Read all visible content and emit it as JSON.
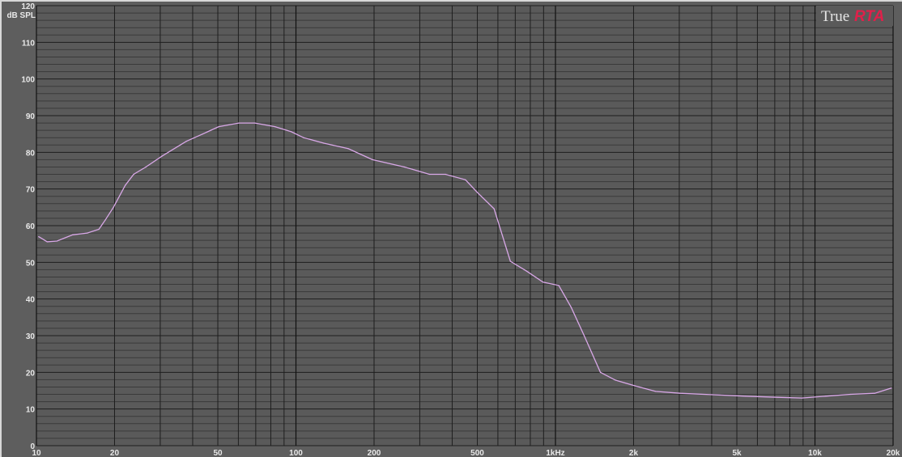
{
  "logo": {
    "part1": "True",
    "part2": "RTA",
    "accent_color": "#e0204a"
  },
  "chart_data": {
    "type": "line",
    "title": "",
    "xlabel": "",
    "ylabel": "dB SPL",
    "xscale": "log",
    "xlim": [
      10,
      20000
    ],
    "ylim": [
      0,
      120
    ],
    "grid": true,
    "x_ticks": [
      {
        "value": 10,
        "label": "10"
      },
      {
        "value": 20,
        "label": "20"
      },
      {
        "value": 50,
        "label": "50"
      },
      {
        "value": 100,
        "label": "100"
      },
      {
        "value": 200,
        "label": "200"
      },
      {
        "value": 500,
        "label": "500"
      },
      {
        "value": 1000,
        "label": "1kHz"
      },
      {
        "value": 2000,
        "label": "2k"
      },
      {
        "value": 5000,
        "label": "5k"
      },
      {
        "value": 10000,
        "label": "10k"
      },
      {
        "value": 20000,
        "label": "20k"
      }
    ],
    "y_ticks": [
      "0",
      "10",
      "20",
      "30",
      "40",
      "50",
      "60",
      "70",
      "80",
      "90",
      "100",
      "110",
      "120"
    ],
    "colors": {
      "background": "#5a5a5a",
      "grid_major": "#1e1e1e",
      "grid_minor": "#3a3a3a",
      "line": "#d9a8e8"
    },
    "series": [
      {
        "color": "#d9a8e8",
        "x": [
          10.2,
          11,
          12,
          13.8,
          15.7,
          17.4,
          18.4,
          19.8,
          22,
          23.7,
          26.4,
          30.5,
          37.8,
          43.7,
          50.4,
          60.2,
          69.5,
          83,
          96,
          107,
          128,
          159,
          197,
          262,
          327,
          377,
          450,
          501,
          580,
          670,
          774,
          895,
          1030,
          1150,
          1290,
          1490,
          1700,
          2030,
          2430,
          3020,
          4040,
          5400,
          7200,
          8900,
          11000,
          13700,
          17000,
          19700
        ],
        "y": [
          57,
          55.6,
          55.8,
          57.5,
          58,
          59,
          61.5,
          65,
          71,
          74,
          76,
          79,
          83,
          85,
          87,
          88,
          88,
          87,
          85.6,
          84,
          82.5,
          81,
          78,
          76,
          74,
          74,
          72.5,
          69,
          64.6,
          50.3,
          47.6,
          44.6,
          43.7,
          37.7,
          30,
          20,
          17.9,
          16.3,
          14.8,
          14.3,
          13.9,
          13.5,
          13.2,
          13,
          13.5,
          14,
          14.3,
          15.7
        ]
      }
    ]
  }
}
